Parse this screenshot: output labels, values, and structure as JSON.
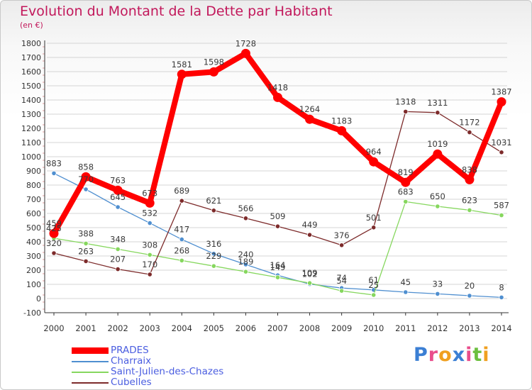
{
  "title": "Evolution du Montant de la Dette par Habitant",
  "subtitle": "(en €)",
  "logo_text": "Proxiti",
  "colors": {
    "title": "#c2185b",
    "legend_text": "#4a5de0",
    "grid": "#d4d4d4",
    "axis": "#333333",
    "tick_minor": "#e0a0a0"
  },
  "chart_data": {
    "type": "line",
    "categories": [
      "2000",
      "2001",
      "2002",
      "2003",
      "2004",
      "2005",
      "2006",
      "2007",
      "2008",
      "2009",
      "2010",
      "2011",
      "2012",
      "2013",
      "2014"
    ],
    "ylim": [
      -100,
      1800
    ],
    "yticks": [
      -100,
      0,
      100,
      200,
      300,
      400,
      500,
      600,
      700,
      800,
      900,
      1000,
      1100,
      1200,
      1300,
      1400,
      1500,
      1600,
      1700,
      1800
    ],
    "grid": true,
    "legend_position": "bottom-left",
    "series": [
      {
        "name": "PRADES",
        "color": "#ff0000",
        "values": [
          459,
          858,
          763,
          673,
          1581,
          1598,
          1728,
          1418,
          1264,
          1183,
          964,
          819,
          1019,
          838,
          1387
        ],
        "labels": [
          "459",
          "858",
          "763",
          "673",
          "1581",
          "1598",
          "1728",
          "1418",
          "1264",
          "1183",
          "964",
          "819",
          "1019",
          "838",
          "1387"
        ]
      },
      {
        "name": "Charraix",
        "color": "#4f8fd0",
        "values": [
          883,
          770,
          645,
          532,
          417,
          316,
          240,
          164,
          102,
          74,
          61,
          45,
          33,
          20,
          8
        ],
        "labels": [
          "883",
          "770",
          "645",
          "532",
          "417",
          "316",
          "240",
          "164",
          "102",
          "74",
          "61",
          "45",
          "33",
          "20",
          "8"
        ]
      },
      {
        "name": "Saint-Julien-des-Chazes",
        "color": "#86d75e",
        "values": [
          425,
          388,
          348,
          308,
          268,
          229,
          189,
          149,
          109,
          54,
          25,
          683,
          650,
          623,
          587
        ],
        "labels": [
          "425",
          "388",
          "348",
          "308",
          "268",
          "229",
          "189",
          "149",
          "109",
          "54",
          "25",
          "683",
          "650",
          "623",
          "587"
        ]
      },
      {
        "name": "Cubelles",
        "color": "#7d2b2b",
        "values": [
          320,
          263,
          207,
          170,
          689,
          621,
          566,
          509,
          449,
          376,
          501,
          1318,
          1311,
          1172,
          1031
        ],
        "labels": [
          "320",
          "263",
          "207",
          "170",
          "689",
          "621",
          "566",
          "509",
          "449",
          "376",
          "501",
          "1318",
          "1311",
          "1172",
          "1031"
        ]
      }
    ]
  }
}
